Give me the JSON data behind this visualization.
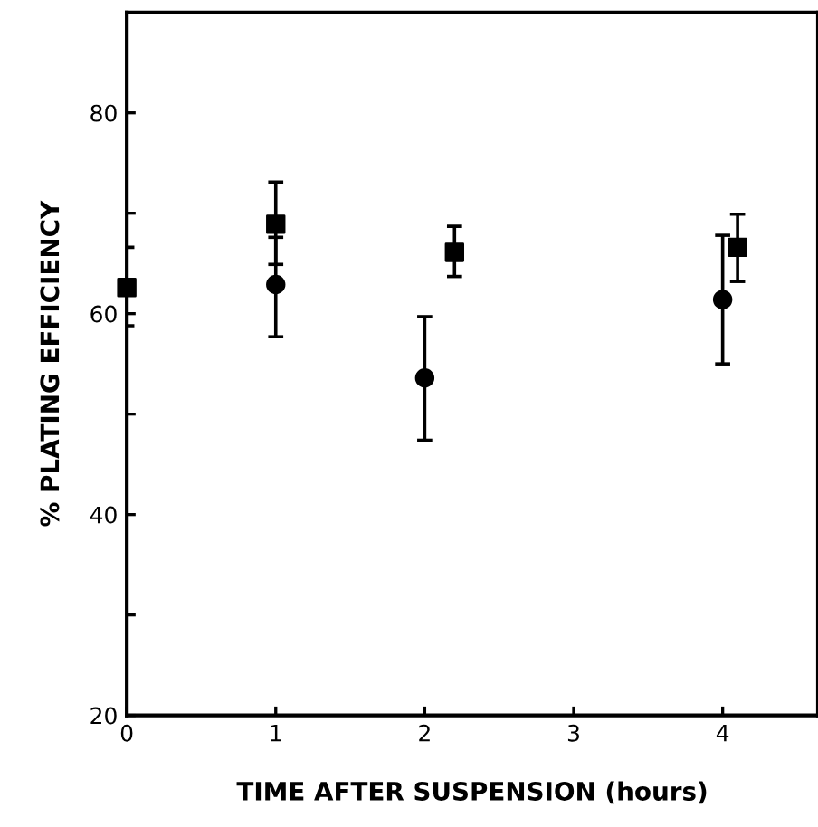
{
  "chart_data": {
    "type": "scatter",
    "xlabel": "TIME AFTER SUSPENSION (hours)",
    "ylabel": "% PLATING EFFICIENCY",
    "xlim": [
      0,
      4.64
    ],
    "xticks": [
      0,
      1,
      2,
      3,
      4
    ],
    "ylim": [
      20,
      90
    ],
    "yticks": [
      20,
      {
        "value": 30,
        "label": null
      },
      40,
      {
        "value": 50,
        "label": null
      },
      60,
      {
        "value": 70,
        "label": null
      },
      80
    ],
    "grid": false,
    "series": [
      {
        "color": "#000000",
        "marker": "square",
        "x": [
          0,
          1,
          2.2,
          4.1
        ],
        "values": [
          62.6,
          68.9,
          66.1,
          66.6
        ],
        "errors": [
          [
            58.8,
            66.6
          ],
          [
            64.9,
            73.1
          ],
          [
            63.7,
            68.7
          ],
          [
            63.2,
            69.9
          ]
        ]
      },
      {
        "color": "#000000",
        "marker": "circle",
        "x": [
          1,
          2,
          4
        ],
        "values": [
          62.9,
          53.6,
          61.4
        ],
        "errors": [
          [
            57.7,
            67.6
          ],
          [
            47.4,
            59.7
          ],
          [
            55.0,
            67.8
          ]
        ]
      }
    ]
  }
}
